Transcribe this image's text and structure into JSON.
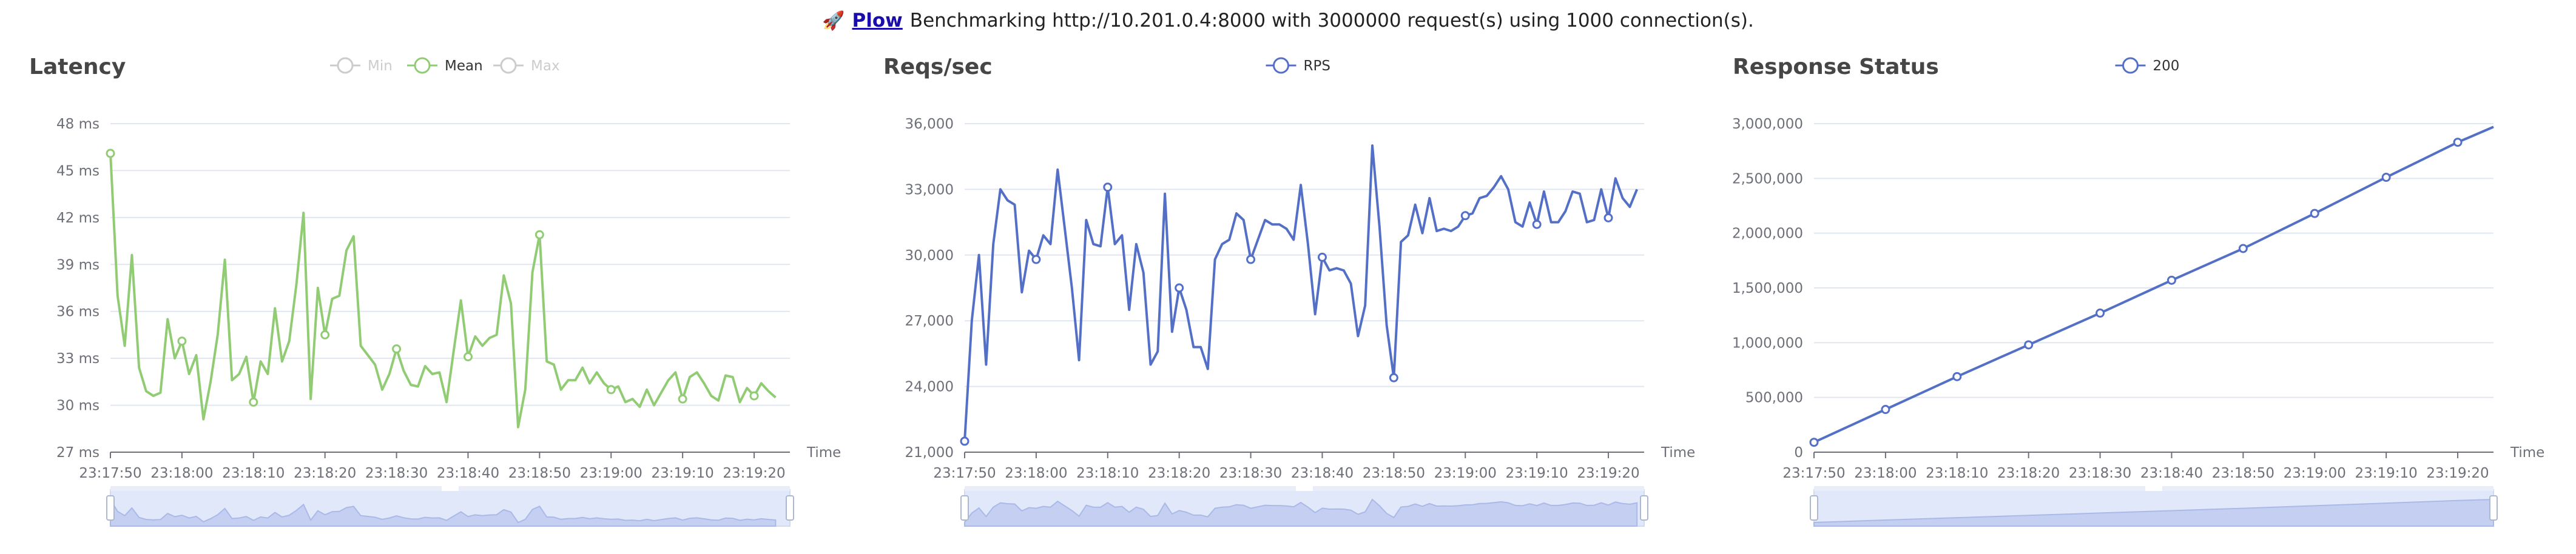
{
  "header": {
    "icon": "rocket-icon",
    "link_text": "Plow",
    "text": "Benchmarking http://10.201.0.4:8000 with 3000000 request(s) using 1000 connection(s)."
  },
  "colors": {
    "latency": "#91cc75",
    "blue": "#5470c6",
    "axis": "#6e7079",
    "grid": "#e0e6f1",
    "legend_off": "#cccccc"
  },
  "chart_data": [
    {
      "type": "line",
      "title": "Latency",
      "xlabel": "Time",
      "ylabel": "",
      "ylim": [
        27,
        48
      ],
      "y_ticks": [
        "27 ms",
        "30 ms",
        "33 ms",
        "36 ms",
        "39 ms",
        "42 ms",
        "45 ms",
        "48 ms"
      ],
      "y_tick_values": [
        27,
        30,
        33,
        36,
        39,
        42,
        45,
        48
      ],
      "x_ticks": [
        "23:17:50",
        "23:18:00",
        "23:18:10",
        "23:18:20",
        "23:18:30",
        "23:18:40",
        "23:18:50",
        "23:19:00",
        "23:19:10",
        "23:19:20"
      ],
      "x_range": [
        0,
        95
      ],
      "legend": [
        {
          "name": "Min",
          "active": false
        },
        {
          "name": "Mean",
          "active": true
        },
        {
          "name": "Max",
          "active": false
        }
      ],
      "series": [
        {
          "name": "Mean",
          "color": "#91cc75",
          "values": [
            46.1,
            37.0,
            33.8,
            39.6,
            32.4,
            30.9,
            30.6,
            30.8,
            35.5,
            33.0,
            34.1,
            32.0,
            33.2,
            29.1,
            31.5,
            34.5,
            39.3,
            31.6,
            32.0,
            33.1,
            30.2,
            32.8,
            32.0,
            36.2,
            32.8,
            34.1,
            37.7,
            42.3,
            30.4,
            37.5,
            34.5,
            36.8,
            37.0,
            39.9,
            40.8,
            33.8,
            33.2,
            32.6,
            31.0,
            32.0,
            33.6,
            32.2,
            31.3,
            31.2,
            32.5,
            32.0,
            32.1,
            30.2,
            33.5,
            36.7,
            33.1,
            34.4,
            33.8,
            34.3,
            34.5,
            38.3,
            36.5,
            28.6,
            31.0,
            38.5,
            40.9,
            32.8,
            32.6,
            31.0,
            31.6,
            31.6,
            32.4,
            31.4,
            32.1,
            31.4,
            31.0,
            31.2,
            30.2,
            30.4,
            29.9,
            31.0,
            30.0,
            30.8,
            31.6,
            32.1,
            30.4,
            31.8,
            32.1,
            31.4,
            30.6,
            30.3,
            31.9,
            31.8,
            30.2,
            31.1,
            30.6,
            31.4,
            30.9,
            30.5
          ],
          "markers": [
            0,
            10,
            20,
            30,
            40,
            50,
            60,
            70,
            80,
            90
          ]
        }
      ]
    },
    {
      "type": "line",
      "title": "Reqs/sec",
      "xlabel": "Time",
      "ylabel": "",
      "ylim": [
        21000,
        36000
      ],
      "y_ticks": [
        "21,000",
        "24,000",
        "27,000",
        "30,000",
        "33,000",
        "36,000"
      ],
      "y_tick_values": [
        21000,
        24000,
        27000,
        30000,
        33000,
        36000
      ],
      "x_ticks": [
        "23:17:50",
        "23:18:00",
        "23:18:10",
        "23:18:20",
        "23:18:30",
        "23:18:40",
        "23:18:50",
        "23:19:00",
        "23:19:10",
        "23:19:20"
      ],
      "x_range": [
        0,
        95
      ],
      "legend": [
        {
          "name": "RPS",
          "active": true
        }
      ],
      "series": [
        {
          "name": "RPS",
          "color": "#5470c6",
          "values": [
            21500,
            27000,
            30000,
            25000,
            30500,
            33000,
            32500,
            32300,
            28300,
            30200,
            29800,
            30900,
            30500,
            33900,
            31200,
            28500,
            25200,
            31600,
            30500,
            30400,
            33100,
            30500,
            30900,
            27500,
            30500,
            29200,
            25000,
            25600,
            32800,
            26500,
            28500,
            27500,
            25800,
            25800,
            24800,
            29800,
            30500,
            30700,
            31900,
            31600,
            29800,
            30700,
            31600,
            31400,
            31400,
            31200,
            30700,
            33200,
            30500,
            27300,
            29900,
            29300,
            29400,
            29300,
            28700,
            26300,
            27700,
            35000,
            31300,
            26800,
            24400,
            30600,
            30900,
            32300,
            31000,
            32600,
            31100,
            31200,
            31100,
            31300,
            31800,
            31900,
            32600,
            32700,
            33100,
            33600,
            33000,
            31500,
            31300,
            32400,
            31400,
            32900,
            31500,
            31500,
            32000,
            32900,
            32800,
            31500,
            31600,
            33000,
            31700,
            33500,
            32600,
            32200,
            33000
          ],
          "markers": [
            0,
            10,
            20,
            30,
            40,
            50,
            60,
            70,
            80,
            90
          ]
        }
      ]
    },
    {
      "type": "line",
      "title": "Response Status",
      "xlabel": "Time",
      "ylabel": "",
      "ylim": [
        0,
        3000000
      ],
      "y_ticks": [
        "0",
        "500,000",
        "1,000,000",
        "1,500,000",
        "2,000,000",
        "2,500,000",
        "3,000,000"
      ],
      "y_tick_values": [
        0,
        500000,
        1000000,
        1500000,
        2000000,
        2500000,
        3000000
      ],
      "x_ticks": [
        "23:17:50",
        "23:18:00",
        "23:18:10",
        "23:18:20",
        "23:18:30",
        "23:18:40",
        "23:18:50",
        "23:19:00",
        "23:19:10",
        "23:19:20"
      ],
      "x_range": [
        0,
        95
      ],
      "legend": [
        {
          "name": "200",
          "active": true
        }
      ],
      "series": [
        {
          "name": "200",
          "color": "#5470c6",
          "x": [
            0,
            10,
            20,
            30,
            40,
            50,
            60,
            70,
            80,
            90,
            95
          ],
          "values": [
            90000,
            390000,
            690000,
            980000,
            1270000,
            1570000,
            1860000,
            2180000,
            2510000,
            2830000,
            2970000
          ],
          "markers": [
            0,
            1,
            2,
            3,
            4,
            5,
            6,
            7,
            8,
            9
          ]
        }
      ]
    }
  ]
}
